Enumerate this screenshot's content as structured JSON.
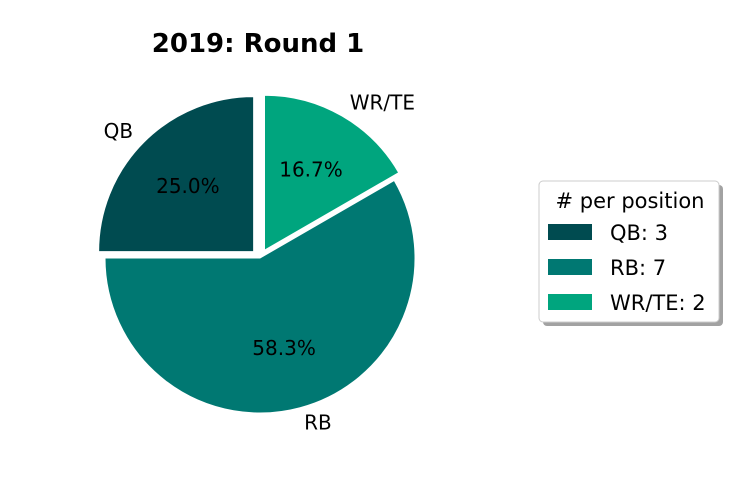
{
  "chart_data": {
    "type": "pie",
    "title": "2019: Round 1",
    "categories": [
      "QB",
      "RB",
      "WR/TE"
    ],
    "values": [
      3,
      7,
      2
    ],
    "percent_labels": [
      "25.0%",
      "58.3%",
      "16.7%"
    ],
    "colors": [
      "#004b50",
      "#007872",
      "#00a57e"
    ],
    "exploded": [
      true,
      false,
      true
    ],
    "legend": {
      "title": "# per position",
      "placement": "right",
      "entries": [
        "QB: 3",
        "RB: 7",
        "WR/TE: 2"
      ]
    }
  }
}
